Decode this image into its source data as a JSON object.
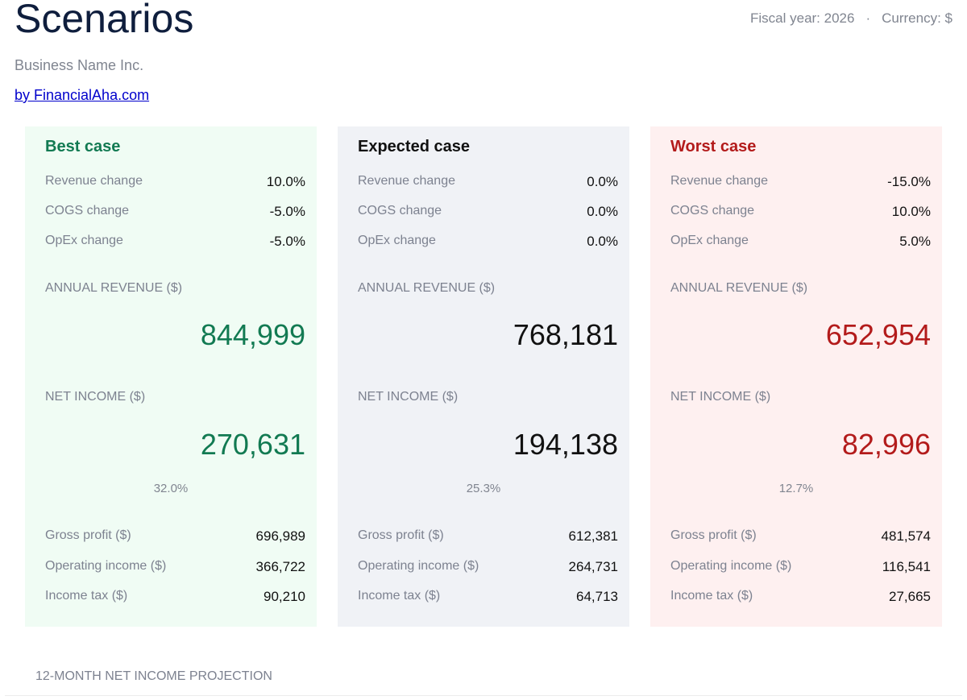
{
  "header": {
    "title": "Scenarios",
    "company": "Business Name Inc.",
    "credit": "by FinancialAha.com",
    "fiscal_year": "Fiscal year: 2026",
    "separator": "·",
    "currency": "Currency: $"
  },
  "labels": {
    "revenue_change": "Revenue change",
    "cogs_change": "COGS change",
    "opex_change": "OpEx change",
    "annual_revenue": "ANNUAL REVENUE ($)",
    "net_income": "NET INCOME ($)",
    "gross_profit": "Gross profit ($)",
    "operating_income": "Operating income ($)",
    "income_tax": "Income tax ($)"
  },
  "scenarios": {
    "best": {
      "title": "Best case",
      "revenue_change": "10.0%",
      "cogs_change": "-5.0%",
      "opex_change": "-5.0%",
      "annual_revenue": "844,999",
      "net_income": "270,631",
      "net_margin": "32.0%",
      "gross_profit": "696,989",
      "operating_income": "366,722",
      "income_tax": "90,210"
    },
    "expected": {
      "title": "Expected case",
      "revenue_change": "0.0%",
      "cogs_change": "0.0%",
      "opex_change": "0.0%",
      "annual_revenue": "768,181",
      "net_income": "194,138",
      "net_margin": "25.3%",
      "gross_profit": "612,381",
      "operating_income": "264,731",
      "income_tax": "64,713"
    },
    "worst": {
      "title": "Worst case",
      "revenue_change": "-15.0%",
      "cogs_change": "10.0%",
      "opex_change": "5.0%",
      "annual_revenue": "652,954",
      "net_income": "82,996",
      "net_margin": "12.7%",
      "gross_profit": "481,574",
      "operating_income": "116,541",
      "income_tax": "27,665"
    }
  },
  "projection": {
    "title": "12-MONTH NET INCOME PROJECTION"
  },
  "colors": {
    "best": "#127a52",
    "worst": "#b31b1b",
    "best_bg": "#f0fcf4",
    "expected_bg": "#f0f2f6",
    "worst_bg": "#fef0f0"
  }
}
